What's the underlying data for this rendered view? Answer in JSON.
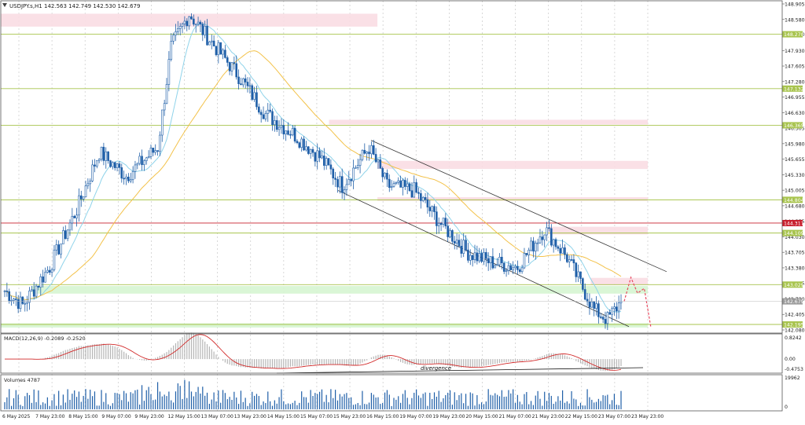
{
  "header": {
    "symbol_info": "USDJPY.s,H1  142.563 142.749 142.530 142.679"
  },
  "colors": {
    "bull": "#1f5fa8",
    "bear": "#1f5fa8",
    "ma_fast": "#8fd3ea",
    "ma_slow": "#f3c24a",
    "level_green": "#a8c44e",
    "level_red": "#c8202e",
    "zone_pink": "#f9dde3",
    "zone_green": "#d6f5d2",
    "macd_signal": "#d22a2a",
    "macd_hist": "#b5b5b5",
    "channel": "#333333",
    "forecast": "#e8495f",
    "volume": "#1f5fa8"
  },
  "price_axis": {
    "ticks": [
      "148.905",
      "148.580",
      "148.270",
      "147.930",
      "147.605",
      "147.280",
      "146.955",
      "146.630",
      "146.305",
      "145.980",
      "145.655",
      "145.330",
      "145.005",
      "144.680",
      "144.355",
      "144.030",
      "143.705",
      "143.380",
      "143.055",
      "142.730",
      "142.405",
      "142.080"
    ],
    "min": 142.08,
    "max": 148.905
  },
  "levels": [
    {
      "price": 148.27,
      "label": "148.270",
      "kind": "green"
    },
    {
      "price": 147.132,
      "label": "147.132",
      "kind": "green"
    },
    {
      "price": 146.365,
      "label": "146.365",
      "kind": "green"
    },
    {
      "price": 144.804,
      "label": "144.804",
      "kind": "green"
    },
    {
      "price": 144.317,
      "label": "144.317",
      "kind": "red"
    },
    {
      "price": 144.109,
      "label": "144.109",
      "kind": "green"
    },
    {
      "price": 143.029,
      "label": "143.029",
      "kind": "green"
    },
    {
      "price": 142.195,
      "label": "142.195",
      "kind": "green"
    }
  ],
  "current_price": {
    "price": 142.679,
    "label": "142.679"
  },
  "zones": [
    {
      "x_from": 0,
      "x_to": 0.482,
      "top": 148.7,
      "bottom": 148.43,
      "kind": "pink"
    },
    {
      "x_from": 0.42,
      "x_to": 0.828,
      "top": 146.48,
      "bottom": 146.38,
      "kind": "pink"
    },
    {
      "x_from": 0.482,
      "x_to": 0.828,
      "top": 145.62,
      "bottom": 145.45,
      "kind": "pink"
    },
    {
      "x_from": 0.482,
      "x_to": 0.828,
      "top": 144.86,
      "bottom": 144.78,
      "kind": "pink"
    },
    {
      "x_from": 0.7,
      "x_to": 0.828,
      "top": 144.24,
      "bottom": 144.08,
      "kind": "pink"
    },
    {
      "x_from": 0.755,
      "x_to": 0.828,
      "top": 143.17,
      "bottom": 143.02,
      "kind": "pink"
    },
    {
      "x_from": 0.04,
      "x_to": 0.828,
      "top": 143.0,
      "bottom": 142.84,
      "kind": "green"
    },
    {
      "x_from": 0,
      "x_to": 0.828,
      "top": 142.22,
      "bottom": 142.13,
      "kind": "green"
    }
  ],
  "macd_panel": {
    "label": "MACD(12,26,9) -0.2089 -0.2520",
    "ticks": [
      "0.8242",
      "0.00",
      "-0.4753"
    ],
    "divergence_label": "divergence"
  },
  "volume_panel": {
    "label": "Volumes 4787",
    "ticks": [
      "19962",
      "0"
    ]
  },
  "time_axis": {
    "labels": [
      "6 May 2025",
      "7 May 23:00",
      "8 May 15:00",
      "9 May 07:00",
      "9 May 23:00",
      "12 May 15:00",
      "13 May 07:00",
      "13 May 23:00",
      "14 May 15:00",
      "15 May 07:00",
      "15 May 23:00",
      "16 May 15:00",
      "19 May 07:00",
      "19 May 23:00",
      "20 May 15:00",
      "21 May 07:00",
      "21 May 23:00",
      "22 May 15:00",
      "23 May 07:00",
      "23 May 23:00"
    ]
  },
  "chart_data": {
    "type": "candlestick",
    "title": "USDJPY.s,H1",
    "ylim": [
      142.08,
      148.905
    ],
    "key_points": [
      {
        "bar": 0,
        "close": 142.9
      },
      {
        "bar": 8,
        "close": 142.6
      },
      {
        "bar": 20,
        "close": 143.4
      },
      {
        "bar": 32,
        "close": 144.6
      },
      {
        "bar": 42,
        "close": 145.8
      },
      {
        "bar": 54,
        "close": 145.3
      },
      {
        "bar": 68,
        "close": 145.9
      },
      {
        "bar": 74,
        "close": 148.0
      },
      {
        "bar": 82,
        "close": 148.7
      },
      {
        "bar": 92,
        "close": 148.1
      },
      {
        "bar": 104,
        "close": 147.4
      },
      {
        "bar": 116,
        "close": 146.6
      },
      {
        "bar": 128,
        "close": 146.2
      },
      {
        "bar": 140,
        "close": 145.7
      },
      {
        "bar": 150,
        "close": 145.1
      },
      {
        "bar": 162,
        "close": 145.9
      },
      {
        "bar": 170,
        "close": 145.1
      },
      {
        "bar": 182,
        "close": 145.0
      },
      {
        "bar": 194,
        "close": 144.3
      },
      {
        "bar": 206,
        "close": 143.7
      },
      {
        "bar": 216,
        "close": 143.5
      },
      {
        "bar": 228,
        "close": 143.4
      },
      {
        "bar": 240,
        "close": 144.2
      },
      {
        "bar": 250,
        "close": 143.6
      },
      {
        "bar": 262,
        "close": 142.5
      },
      {
        "bar": 268,
        "close": 142.3
      },
      {
        "bar": 274,
        "close": 142.68
      }
    ],
    "bar_count": 275,
    "forecast": [
      {
        "t": 0,
        "price": 142.68
      },
      {
        "t": 1,
        "price": 143.18
      },
      {
        "t": 2,
        "price": 142.85
      },
      {
        "t": 3,
        "price": 142.95
      },
      {
        "t": 4,
        "price": 142.13
      }
    ]
  }
}
